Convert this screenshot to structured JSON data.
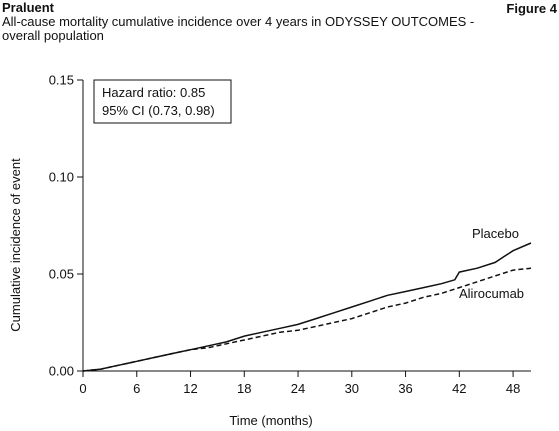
{
  "header": {
    "brand": "Praluent",
    "figure_label": "Figure 4",
    "subtitle": "All-cause mortality cumulative incidence over 4 years in ODYSSEY OUTCOMES - overall population"
  },
  "annotation": {
    "line1": "Hazard ratio: 0.85",
    "line2": "95% CI (0.73, 0.98)"
  },
  "chart_data": {
    "type": "line",
    "title": "All-cause mortality cumulative incidence over 4 years in ODYSSEY OUTCOMES - overall population",
    "xlabel": "Time (months)",
    "ylabel": "Cumulative incidence of event",
    "xlim": [
      0,
      50
    ],
    "ylim": [
      0,
      0.15
    ],
    "x_ticks": [
      0,
      6,
      12,
      18,
      24,
      30,
      36,
      42,
      48
    ],
    "x_tick_labels": [
      "0",
      "6",
      "12",
      "18",
      "24",
      "30",
      "36",
      "42",
      "48"
    ],
    "y_ticks": [
      0,
      0.05,
      0.1,
      0.15
    ],
    "y_tick_labels": [
      "0.00",
      "0.05",
      "0.10",
      "0.15"
    ],
    "grid": false,
    "series": [
      {
        "name": "Placebo",
        "style": "solid",
        "color": "#111111",
        "x": [
          0,
          2,
          4,
          6,
          8,
          10,
          12,
          14,
          16,
          18,
          20,
          22,
          24,
          26,
          28,
          30,
          32,
          34,
          36,
          38,
          40,
          41.5,
          42,
          44,
          46,
          47,
          48,
          50
        ],
        "y": [
          0,
          0.001,
          0.003,
          0.005,
          0.007,
          0.009,
          0.011,
          0.013,
          0.015,
          0.018,
          0.02,
          0.022,
          0.024,
          0.027,
          0.03,
          0.033,
          0.036,
          0.039,
          0.041,
          0.043,
          0.045,
          0.047,
          0.051,
          0.053,
          0.056,
          0.059,
          0.062,
          0.066
        ]
      },
      {
        "name": "Alirocumab",
        "style": "dashed",
        "color": "#111111",
        "x": [
          0,
          2,
          4,
          6,
          8,
          10,
          12,
          14,
          16,
          18,
          20,
          22,
          24,
          26,
          28,
          30,
          32,
          34,
          36,
          38,
          40,
          42,
          44,
          46,
          48,
          50
        ],
        "y": [
          0,
          0.001,
          0.003,
          0.005,
          0.007,
          0.009,
          0.011,
          0.012,
          0.014,
          0.016,
          0.018,
          0.02,
          0.021,
          0.023,
          0.025,
          0.027,
          0.03,
          0.033,
          0.035,
          0.038,
          0.04,
          0.043,
          0.046,
          0.049,
          0.052,
          0.053
        ]
      }
    ]
  }
}
